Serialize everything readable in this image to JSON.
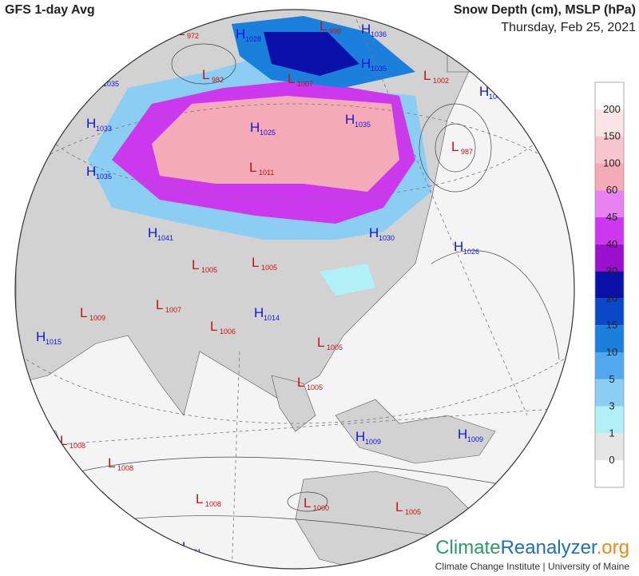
{
  "header": {
    "title": "GFS 1-day Avg",
    "variable": "Snow Depth (cm), MSLP (hPa)",
    "date": "Thursday, Feb 25, 2021"
  },
  "legend": {
    "ticks": [
      200,
      150,
      100,
      60,
      45,
      40,
      30,
      20,
      15,
      10,
      5,
      3,
      1,
      0
    ],
    "colors": [
      "#ffffff",
      "#fbe4e6",
      "#f7c6cc",
      "#f5aab8",
      "#e882f2",
      "#cc38ee",
      "#9a10cc",
      "#0a10a8",
      "#0a48c8",
      "#1a80dc",
      "#52a8ec",
      "#8ccdf4",
      "#b2f0f8",
      "#e6e6e6",
      "#ffffff"
    ]
  },
  "pressure_systems": [
    {
      "type": "H",
      "value": 1035
    },
    {
      "type": "L",
      "value": 972
    },
    {
      "type": "H",
      "value": 1028
    },
    {
      "type": "L",
      "value": 998
    },
    {
      "type": "H",
      "value": 1036
    },
    {
      "type": "L",
      "value": 982
    },
    {
      "type": "L",
      "value": 1007
    },
    {
      "type": "H",
      "value": 1035
    },
    {
      "type": "L",
      "value": 1002
    },
    {
      "type": "H",
      "value": 1045
    },
    {
      "type": "H",
      "value": 1033
    },
    {
      "type": "H",
      "value": 1025
    },
    {
      "type": "H",
      "value": 1035
    },
    {
      "type": "L",
      "value": 987
    },
    {
      "type": "H",
      "value": 1035
    },
    {
      "type": "L",
      "value": 1011
    },
    {
      "type": "H",
      "value": 1041
    },
    {
      "type": "H",
      "value": 1030
    },
    {
      "type": "H",
      "value": 1026
    },
    {
      "type": "L",
      "value": 1005
    },
    {
      "type": "L",
      "value": 1005
    },
    {
      "type": "L",
      "value": 1009
    },
    {
      "type": "L",
      "value": 1007
    },
    {
      "type": "H",
      "value": 1014
    },
    {
      "type": "H",
      "value": 1015
    },
    {
      "type": "L",
      "value": 1006
    },
    {
      "type": "L",
      "value": 1005
    },
    {
      "type": "L",
      "value": 1005
    },
    {
      "type": "L",
      "value": 1008
    },
    {
      "type": "L",
      "value": 1008
    },
    {
      "type": "H",
      "value": 1009
    },
    {
      "type": "H",
      "value": 1009
    },
    {
      "type": "L",
      "value": 1008
    },
    {
      "type": "L",
      "value": 1000
    },
    {
      "type": "L",
      "value": 1005
    },
    {
      "type": "H",
      "value": 1021
    }
  ],
  "branding": {
    "name_part1": "Climate",
    "name_part2": "Reanalyzer",
    "name_part3": ".org",
    "tagline": "Climate Change Institute | University of Maine"
  }
}
